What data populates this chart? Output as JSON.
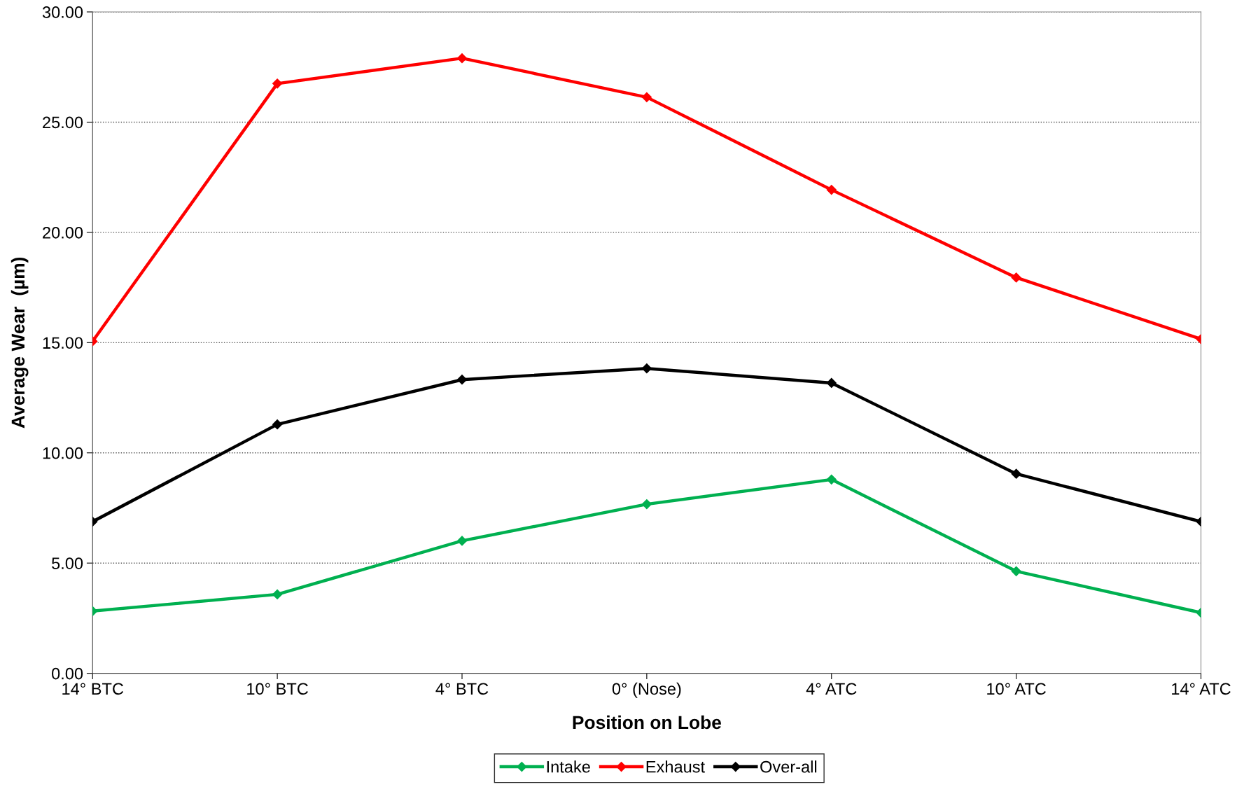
{
  "chart_data": {
    "type": "line",
    "xlabel": "Position on Lobe",
    "ylabel": "Average Wear  (µm)",
    "categories": [
      "14° BTC",
      "10° BTC",
      "4° BTC",
      "0° (Nose)",
      "4° ATC",
      "10° ATC",
      "14° ATC"
    ],
    "series": [
      {
        "name": "Intake",
        "color": "#00b050",
        "values": [
          2.82,
          3.58,
          6.01,
          7.67,
          8.79,
          4.63,
          2.75
        ]
      },
      {
        "name": "Exhaust",
        "color": "#ff0000",
        "values": [
          15.06,
          26.75,
          27.9,
          26.13,
          21.93,
          17.95,
          15.16
        ]
      },
      {
        "name": "Over-all",
        "color": "#000000",
        "values": [
          6.88,
          11.29,
          13.32,
          13.83,
          13.17,
          9.05,
          6.88
        ]
      }
    ],
    "ylim": [
      0,
      30
    ],
    "yticks": [
      {
        "value": 0,
        "label": "0.00"
      },
      {
        "value": 5,
        "label": "5.00"
      },
      {
        "value": 10,
        "label": "10.00"
      },
      {
        "value": 15,
        "label": "15.00"
      },
      {
        "value": 20,
        "label": "20.00"
      },
      {
        "value": 25,
        "label": "25.00"
      },
      {
        "value": 30,
        "label": "30.00"
      }
    ],
    "grid": "y",
    "legend": "bottom",
    "marker": "diamond",
    "line_style": "solid"
  }
}
